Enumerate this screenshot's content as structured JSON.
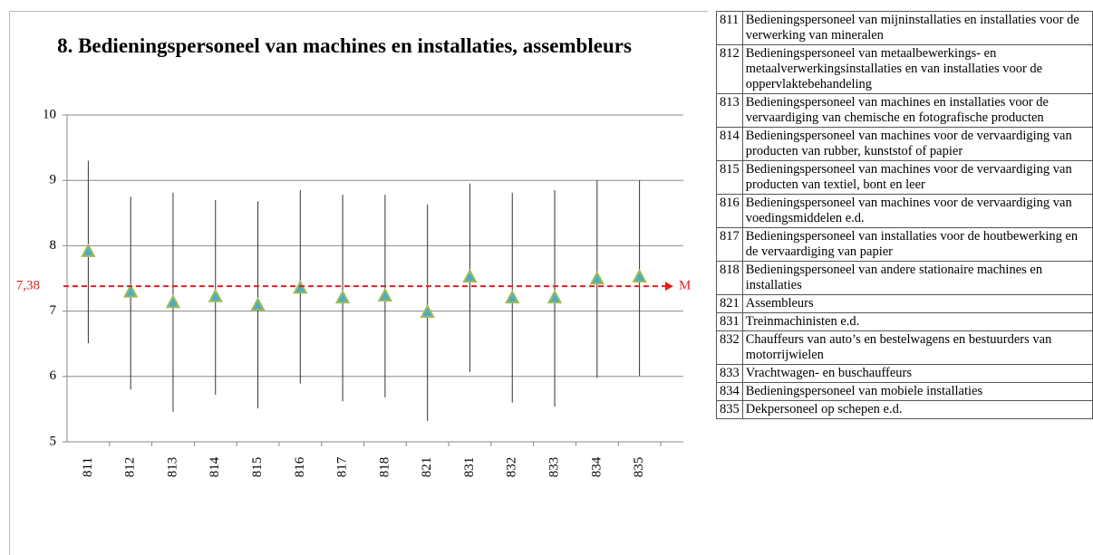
{
  "chart_data": {
    "type": "errorbar",
    "title": "8. Bedieningspersoneel van machines en installaties, assembleurs",
    "categories": [
      "811",
      "812",
      "813",
      "814",
      "815",
      "816",
      "817",
      "818",
      "821",
      "831",
      "832",
      "833",
      "834",
      "835"
    ],
    "values": [
      7.91,
      7.29,
      7.13,
      7.22,
      7.09,
      7.35,
      7.2,
      7.23,
      6.98,
      7.52,
      7.2,
      7.2,
      7.49,
      7.52
    ],
    "high": [
      9.3,
      8.75,
      8.81,
      8.7,
      8.68,
      8.85,
      8.78,
      8.78,
      8.63,
      8.95,
      8.81,
      8.85,
      9.0,
      9.0
    ],
    "low": [
      6.51,
      5.8,
      5.46,
      5.72,
      5.51,
      5.89,
      5.62,
      5.68,
      5.32,
      6.07,
      5.6,
      5.54,
      5.98,
      6.01
    ],
    "color": "#4bacc6",
    "edge_color": "#9bbb59",
    "ylim": [
      5,
      10
    ],
    "yticks": [
      5,
      6,
      7,
      8,
      9,
      10
    ],
    "grid": true,
    "mean_line": {
      "value": 7.38,
      "label": "7,38",
      "name": "M",
      "color": "#e02020"
    }
  },
  "table": {
    "rows": [
      [
        "811",
        "Bedieningspersoneel van mijninstallaties en installaties voor de verwerking van mineralen"
      ],
      [
        "812",
        "Bedieningspersoneel van metaalbewerkings- en metaalverwerkingsinstallaties en van installaties voor de oppervlaktebehandeling"
      ],
      [
        "813",
        "Bedieningspersoneel van machines en installaties voor de vervaardiging van chemische en fotografische producten"
      ],
      [
        "814",
        "Bedieningspersoneel van machines voor de vervaardiging van producten van rubber, kunststof of papier"
      ],
      [
        "815",
        "Bedieningspersoneel van machines voor de vervaardiging van producten van textiel, bont en leer"
      ],
      [
        "816",
        "Bedieningspersoneel van machines voor de vervaardiging van voedingsmiddelen e.d."
      ],
      [
        "817",
        "Bedieningspersoneel van installaties voor de houtbewerking en de vervaardiging van papier"
      ],
      [
        "818",
        "Bedieningspersoneel van andere stationaire machines en installaties"
      ],
      [
        "821",
        "Assembleurs"
      ],
      [
        "831",
        "Treinmachinisten e.d."
      ],
      [
        "832",
        "Chauffeurs van auto’s en bestelwagens en bestuurders van motorrijwielen"
      ],
      [
        "833",
        "Vrachtwagen- en buschauffeurs"
      ],
      [
        "834",
        "Bedieningspersoneel van mobiele installaties"
      ],
      [
        "835",
        "Dekpersoneel op schepen e.d."
      ]
    ]
  }
}
